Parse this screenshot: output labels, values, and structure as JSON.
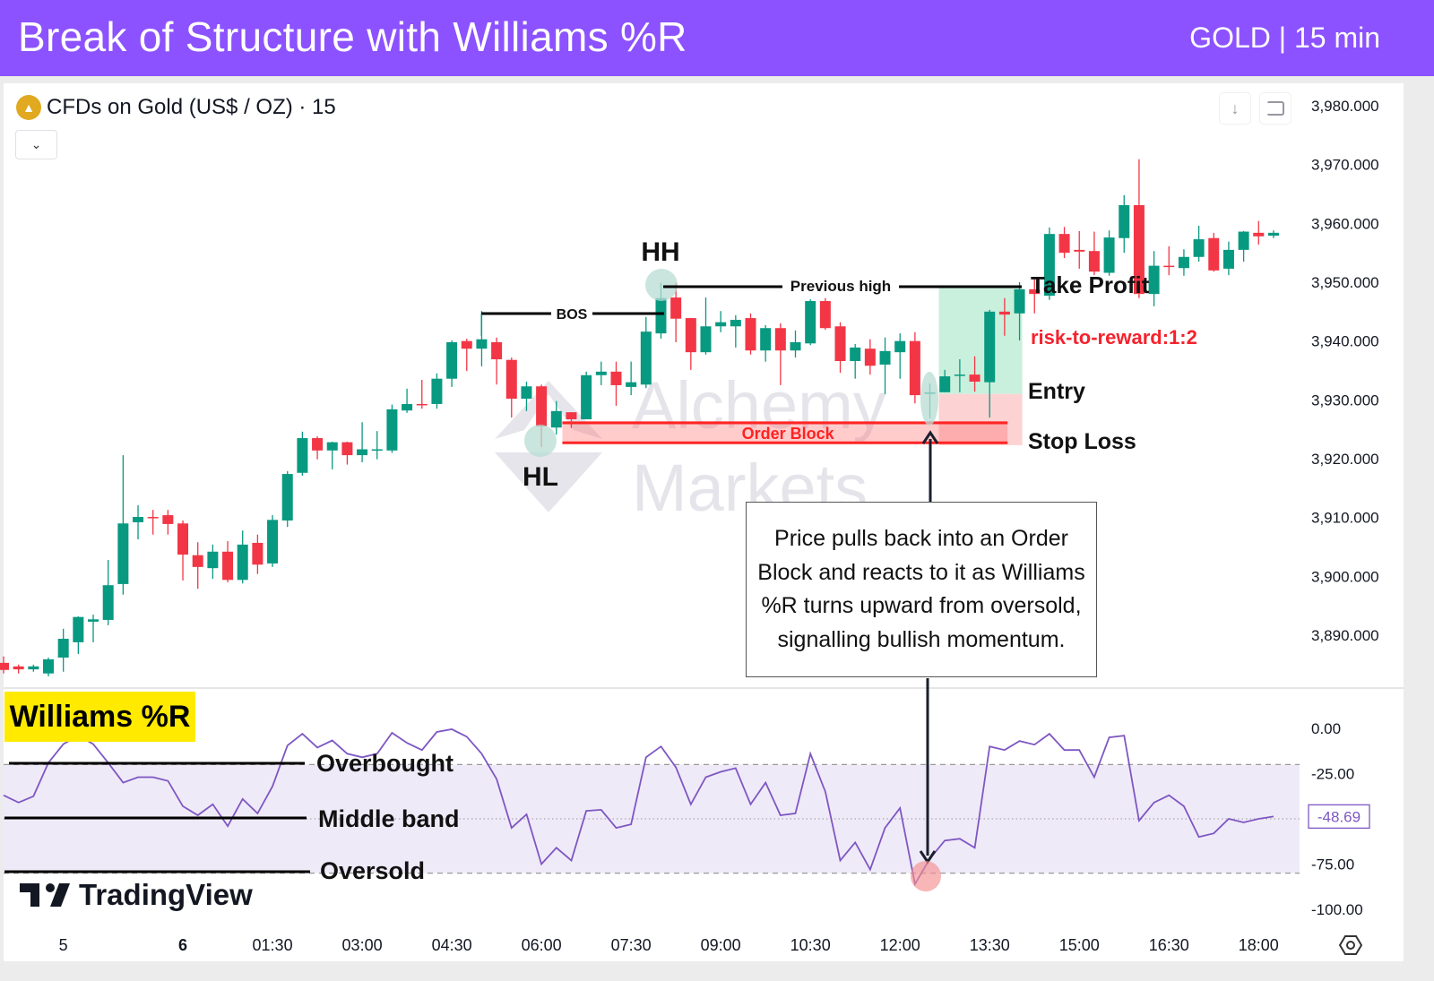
{
  "header": {
    "title": "Break of Structure with Williams %R",
    "subtitle": "GOLD | 15 min"
  },
  "chart_header": {
    "symbol": "CFDs on Gold (US$ / OZ) · 15",
    "dropdown_icon": "chevron-down-icon",
    "download_icon": "arrow-down-icon",
    "fullscreen_icon": "fullscreen-icon"
  },
  "watermark": {
    "line1": "Alchemy",
    "line2": "Markets"
  },
  "colors": {
    "header": "#8c52ff",
    "up": "#089981",
    "down": "#f23645",
    "indicator": "#7e57c2",
    "indicator_band": "#efeaf8",
    "badge": "#ffea00"
  },
  "chart_data": [
    {
      "type": "candlestick",
      "title": "",
      "ylim": [
        3880,
        3985
      ],
      "y_ticks": [
        3980,
        3970,
        3960,
        3950,
        3940,
        3930,
        3920,
        3910,
        3900,
        3890
      ],
      "y_tick_labels": [
        "3,980.000",
        "3,970.000",
        "3,960.000",
        "3,950.000",
        "3,940.000",
        "3,930.000",
        "3,920.000",
        "3,910.000",
        "3,900.000",
        "3,890.000"
      ],
      "x_ticks": [
        {
          "label": "5",
          "bar": 4
        },
        {
          "label": "6",
          "bar": 12
        },
        {
          "label": "01:30",
          "bar": 18
        },
        {
          "label": "03:00",
          "bar": 24
        },
        {
          "label": "04:30",
          "bar": 30
        },
        {
          "label": "06:00",
          "bar": 36
        },
        {
          "label": "07:30",
          "bar": 42
        },
        {
          "label": "09:00",
          "bar": 48
        },
        {
          "label": "10:30",
          "bar": 54
        },
        {
          "label": "12:00",
          "bar": 60
        },
        {
          "label": "13:30",
          "bar": 66
        },
        {
          "label": "15:00",
          "bar": 72
        },
        {
          "label": "16:30",
          "bar": 78
        },
        {
          "label": "18:00",
          "bar": 84
        }
      ],
      "ohlc_fields": [
        "open",
        "high",
        "low",
        "close"
      ],
      "candles": [
        [
          3885.3,
          3886.4,
          3883.5,
          3884.1
        ],
        [
          3884.7,
          3885.0,
          3883.5,
          3884.2
        ],
        [
          3884.2,
          3885.0,
          3883.8,
          3884.7
        ],
        [
          3883.5,
          3886.2,
          3883.0,
          3885.9
        ],
        [
          3886.2,
          3891.1,
          3883.8,
          3889.4
        ],
        [
          3888.8,
          3893.2,
          3886.8,
          3893.1
        ],
        [
          3892.3,
          3893.5,
          3888.8,
          3892.7
        ],
        [
          3892.6,
          3902.8,
          3891.7,
          3898.5
        ],
        [
          3898.7,
          3920.6,
          3896.9,
          3909.0
        ],
        [
          3909.2,
          3912.1,
          3906.3,
          3910.1
        ],
        [
          3910.1,
          3911.3,
          3907.1,
          3910.0
        ],
        [
          3910.4,
          3911.3,
          3907.1,
          3908.9
        ],
        [
          3909.0,
          3909.5,
          3899.3,
          3903.7
        ],
        [
          3903.6,
          3905.8,
          3897.9,
          3901.6
        ],
        [
          3901.4,
          3905.4,
          3899.6,
          3904.2
        ],
        [
          3904.2,
          3906.0,
          3899.0,
          3899.4
        ],
        [
          3899.4,
          3907.8,
          3898.8,
          3905.4
        ],
        [
          3905.7,
          3907.1,
          3900.4,
          3902.0
        ],
        [
          3902.2,
          3910.4,
          3901.6,
          3909.6
        ],
        [
          3909.5,
          3917.9,
          3908.4,
          3917.4
        ],
        [
          3917.6,
          3924.6,
          3917.1,
          3923.5
        ],
        [
          3923.5,
          3923.8,
          3919.9,
          3921.4
        ],
        [
          3921.4,
          3922.9,
          3918.2,
          3922.8
        ],
        [
          3922.8,
          3922.9,
          3919.0,
          3920.6
        ],
        [
          3920.6,
          3926.2,
          3919.4,
          3921.6
        ],
        [
          3921.4,
          3924.7,
          3919.9,
          3921.6
        ],
        [
          3921.4,
          3929.2,
          3921.0,
          3928.4
        ],
        [
          3928.2,
          3931.9,
          3927.8,
          3929.3
        ],
        [
          3929.3,
          3933.4,
          3928.5,
          3929.2
        ],
        [
          3929.3,
          3934.5,
          3928.5,
          3933.6
        ],
        [
          3933.6,
          3940.1,
          3932.2,
          3939.8
        ],
        [
          3940.0,
          3940.4,
          3934.9,
          3938.7
        ],
        [
          3938.7,
          3945.1,
          3935.7,
          3940.3
        ],
        [
          3939.8,
          3940.6,
          3932.6,
          3936.9
        ],
        [
          3936.8,
          3937.2,
          3927.0,
          3930.2
        ],
        [
          3930.2,
          3933.1,
          3928.1,
          3932.3
        ],
        [
          3932.3,
          3932.6,
          3922.0,
          3925.5
        ],
        [
          3925.3,
          3929.8,
          3924.1,
          3928.1
        ],
        [
          3927.9,
          3927.9,
          3925.2,
          3926.7
        ],
        [
          3926.7,
          3934.8,
          3926.7,
          3934.2
        ],
        [
          3934.2,
          3936.5,
          3932.5,
          3934.8
        ],
        [
          3934.8,
          3936.5,
          3929.0,
          3932.5
        ],
        [
          3932.2,
          3936.5,
          3930.8,
          3933.0
        ],
        [
          3932.6,
          3944.1,
          3932.0,
          3941.6
        ],
        [
          3941.3,
          3949.9,
          3940.4,
          3947.3
        ],
        [
          3947.4,
          3949.9,
          3939.8,
          3943.8
        ],
        [
          3943.9,
          3943.9,
          3935.1,
          3938.1
        ],
        [
          3938.1,
          3947.4,
          3937.7,
          3942.5
        ],
        [
          3942.5,
          3945.1,
          3941.5,
          3943.2
        ],
        [
          3942.5,
          3944.4,
          3938.9,
          3943.6
        ],
        [
          3943.9,
          3944.7,
          3937.7,
          3938.4
        ],
        [
          3938.4,
          3942.7,
          3936.5,
          3942.2
        ],
        [
          3942.2,
          3943.0,
          3932.5,
          3938.4
        ],
        [
          3938.4,
          3941.8,
          3937.2,
          3939.8
        ],
        [
          3939.6,
          3947.1,
          3939.3,
          3946.8
        ],
        [
          3946.8,
          3947.3,
          3941.9,
          3942.2
        ],
        [
          3942.5,
          3943.2,
          3934.6,
          3936.6
        ],
        [
          3936.6,
          3939.5,
          3933.6,
          3938.9
        ],
        [
          3938.7,
          3940.3,
          3934.3,
          3935.8
        ],
        [
          3936.0,
          3940.6,
          3931.0,
          3938.3
        ],
        [
          3938.1,
          3941.3,
          3933.6,
          3940.0
        ],
        [
          3940.0,
          3941.5,
          3929.4,
          3930.8
        ],
        [
          3931.0,
          3932.8,
          3926.9,
          3931.3
        ],
        [
          3931.3,
          3935.1,
          3931.3,
          3934.0
        ],
        [
          3934.2,
          3936.9,
          3931.3,
          3934.3
        ],
        [
          3934.3,
          3937.4,
          3931.4,
          3933.1
        ],
        [
          3933.0,
          3945.3,
          3927.0,
          3945.0
        ],
        [
          3945.0,
          3947.3,
          3940.9,
          3944.5
        ],
        [
          3944.7,
          3950.0,
          3940.1,
          3948.8
        ],
        [
          3948.8,
          3950.5,
          3944.7,
          3948.0
        ],
        [
          3947.7,
          3959.3,
          3947.0,
          3958.2
        ],
        [
          3958.2,
          3959.4,
          3954.1,
          3955.0
        ],
        [
          3955.5,
          3958.7,
          3952.3,
          3955.2
        ],
        [
          3955.3,
          3958.6,
          3951.2,
          3951.8
        ],
        [
          3951.6,
          3958.8,
          3951.1,
          3957.6
        ],
        [
          3957.5,
          3964.8,
          3955.0,
          3963.1
        ],
        [
          3963.1,
          3970.9,
          3947.3,
          3948.0
        ],
        [
          3948.0,
          3955.3,
          3945.9,
          3952.8
        ],
        [
          3952.8,
          3956.1,
          3951.2,
          3952.6
        ],
        [
          3952.4,
          3955.6,
          3951.1,
          3954.3
        ],
        [
          3954.3,
          3959.6,
          3953.5,
          3957.3
        ],
        [
          3957.5,
          3958.4,
          3951.8,
          3952.0
        ],
        [
          3952.3,
          3956.9,
          3951.2,
          3955.5
        ],
        [
          3955.5,
          3958.7,
          3953.5,
          3958.6
        ],
        [
          3958.4,
          3960.4,
          3956.4,
          3957.8
        ],
        [
          3957.9,
          3958.8,
          3957.5,
          3958.4
        ]
      ]
    },
    {
      "type": "line",
      "title": "Williams %R",
      "ylim": [
        -105,
        5
      ],
      "y_ticks": [
        0,
        -25,
        -75,
        -100
      ],
      "y_tick_labels": [
        "0.00",
        "-25.00",
        "-75.00",
        "-100.00"
      ],
      "levels": {
        "overbought": -20,
        "middle": -50,
        "oversold": -80
      },
      "current_value_label": "-48.69",
      "values": [
        -37,
        -41,
        -37.5,
        -19,
        -8.7,
        -4,
        -8.7,
        -19,
        -30,
        -27,
        -27,
        -29,
        -43,
        -48,
        -42,
        -54,
        -39,
        -47,
        -32,
        -9.5,
        -3,
        -10.6,
        -6.7,
        -14,
        -16,
        -14,
        -2.5,
        -8,
        -12,
        -2,
        -0.5,
        -4.6,
        -14,
        -28,
        -55,
        -47.5,
        -75,
        -66,
        -73,
        -45.6,
        -45,
        -55,
        -53,
        -16,
        -10,
        -21.6,
        -42,
        -27,
        -24,
        -22,
        -42,
        -30,
        -48,
        -47,
        -14,
        -35,
        -73,
        -63,
        -78,
        -55,
        -44,
        -86,
        -72,
        -62,
        -61,
        -66,
        -10,
        -12,
        -7,
        -9,
        -3,
        -12,
        -12,
        -27,
        -5,
        -4,
        -51,
        -41,
        -37,
        -43,
        -60,
        -58,
        -50,
        -52,
        -50,
        -48.69
      ]
    }
  ],
  "annotations": {
    "hh": "HH",
    "hl": "HL",
    "bos": "BOS",
    "previous_high": "Previous high",
    "order_block": "Order Block",
    "take_profit": "Take Profit",
    "risk_reward": "risk-to-reward:1:2",
    "entry": "Entry",
    "stop_loss": "Stop Loss",
    "note": "Price pulls back into an Order Block and reacts to it as Williams %R turns upward from oversold, signalling bullish momentum.",
    "indicator_badge": "Williams %R",
    "overbought": "Overbought",
    "middle_band": "Middle band",
    "oversold": "Oversold"
  },
  "branding": {
    "tradingview": "TradingView",
    "settings_icon": "settings-icon"
  }
}
